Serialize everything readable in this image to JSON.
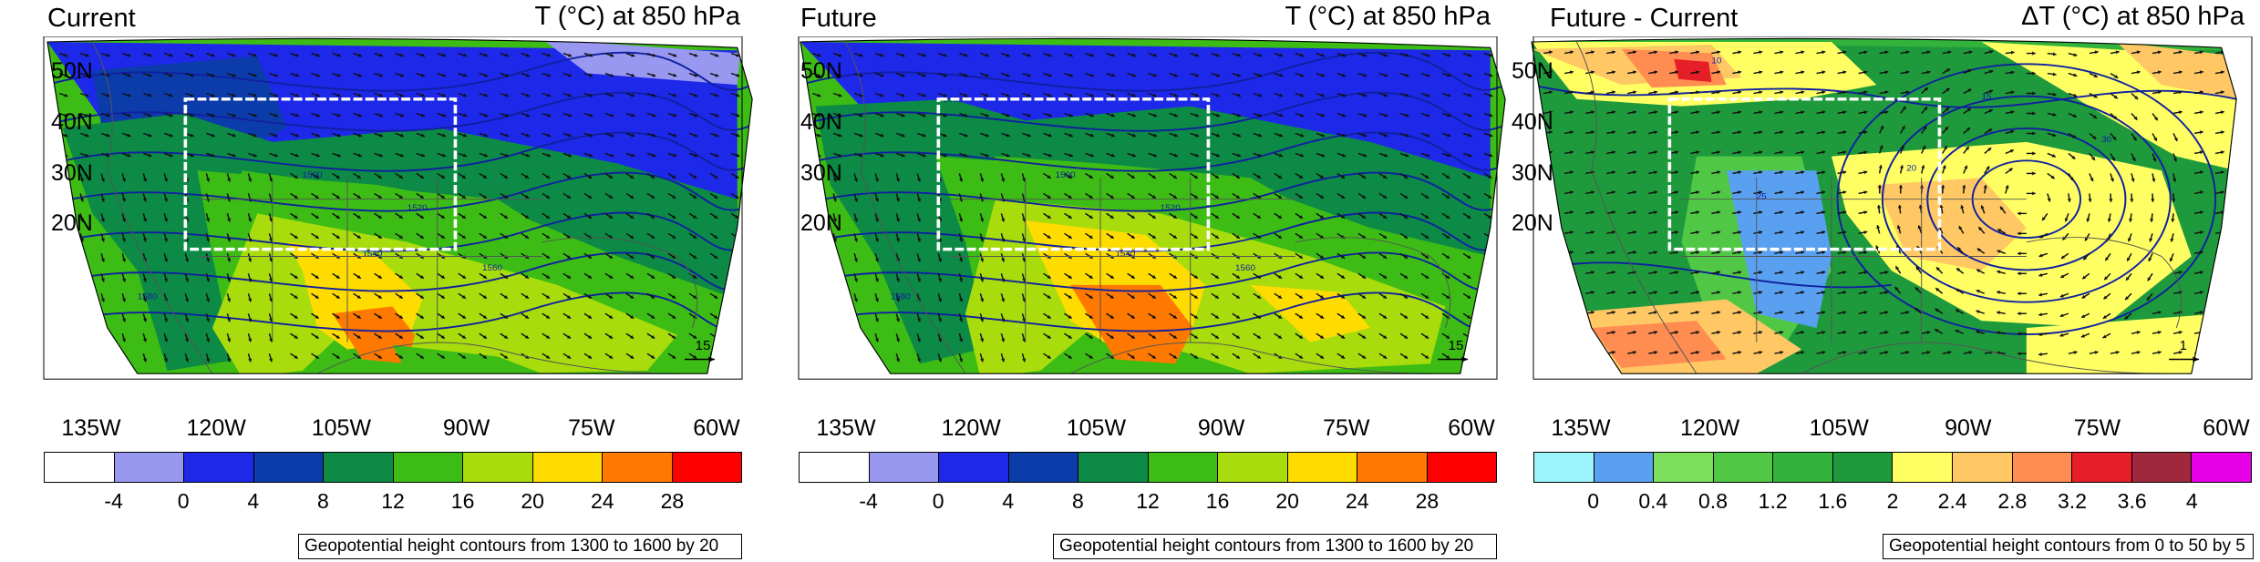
{
  "panels": [
    {
      "title_left": "Current",
      "title_right": "T (°C) at 850 hPa",
      "ref_vector": "15",
      "lat_ticks": [
        "50N",
        "40N",
        "30N",
        "20N"
      ],
      "lon_ticks": [
        "135W",
        "120W",
        "105W",
        "90W",
        "75W",
        "60W"
      ],
      "colorbar": {
        "colors": [
          "#ffffff",
          "#9898f0",
          "#1e28e8",
          "#0c3caa",
          "#0c8a46",
          "#3cbc14",
          "#a8dc0c",
          "#ffdc00",
          "#ff7800",
          "#ff0000"
        ],
        "labels": [
          "-4",
          "0",
          "4",
          "8",
          "12",
          "16",
          "20",
          "24",
          "28"
        ]
      },
      "contour_note": "Geopotential height contours from 1300 to 1600 by 20",
      "contour_labels": [
        "1460",
        "1500",
        "1520",
        "1540",
        "1560",
        "1580"
      ]
    },
    {
      "title_left": "Future",
      "title_right": "T (°C) at 850 hPa",
      "ref_vector": "15",
      "lat_ticks": [
        "50N",
        "40N",
        "30N",
        "20N"
      ],
      "lon_ticks": [
        "135W",
        "120W",
        "105W",
        "90W",
        "75W",
        "60W"
      ],
      "colorbar": {
        "colors": [
          "#ffffff",
          "#9898f0",
          "#1e28e8",
          "#0c3caa",
          "#0c8a46",
          "#3cbc14",
          "#a8dc0c",
          "#ffdc00",
          "#ff7800",
          "#ff0000"
        ],
        "labels": [
          "-4",
          "0",
          "4",
          "8",
          "12",
          "16",
          "20",
          "24",
          "28"
        ]
      },
      "contour_note": "Geopotential height contours from 1300 to 1600 by 20",
      "contour_labels": [
        "1480",
        "1500",
        "1520",
        "1540",
        "1560",
        "1580"
      ]
    },
    {
      "title_left": "Future - Current",
      "title_right": "ΔT (°C) at 850 hPa",
      "ref_vector": "1",
      "lat_ticks": [
        "50N",
        "40N",
        "30N",
        "20N"
      ],
      "lon_ticks": [
        "135W",
        "120W",
        "105W",
        "90W",
        "75W",
        "60W"
      ],
      "colorbar": {
        "colors": [
          "#9cf4fc",
          "#5aa0f0",
          "#7ce05c",
          "#50c846",
          "#32b43c",
          "#1e9a3c",
          "#ffff64",
          "#ffc864",
          "#ff8c50",
          "#e61e28",
          "#a0283c",
          "#e600e6"
        ],
        "labels": [
          "0",
          "0.4",
          "0.8",
          "1.2",
          "1.6",
          "2",
          "2.4",
          "2.8",
          "3.2",
          "3.6",
          "4"
        ]
      },
      "contour_note": "Geopotential height contours from 0 to 50 by 5",
      "contour_labels": [
        "10",
        "15",
        "20",
        "25",
        "30"
      ]
    }
  ]
}
